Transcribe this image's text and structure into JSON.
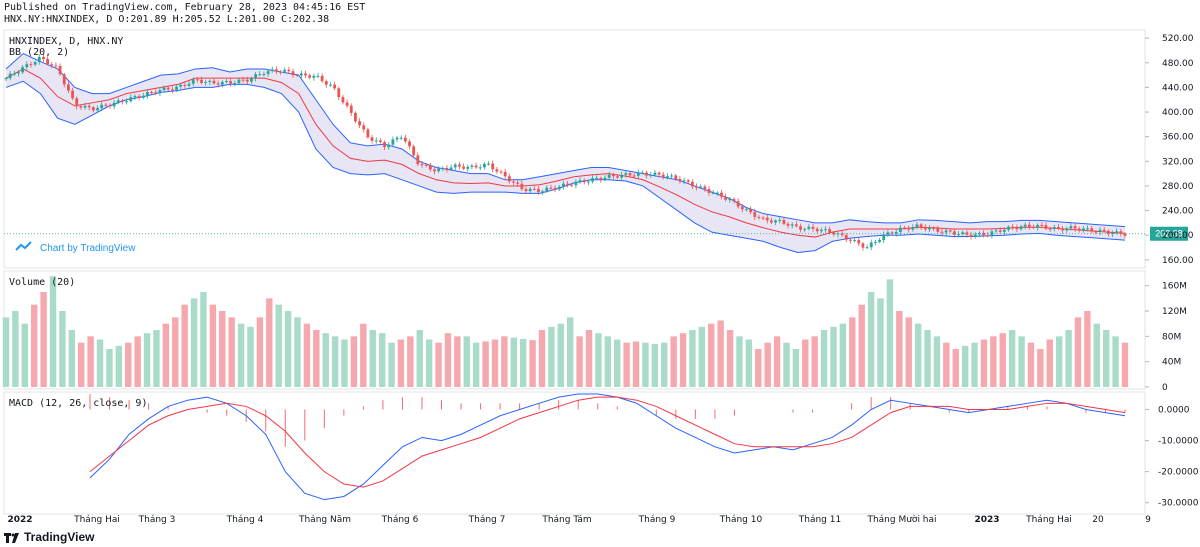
{
  "header": {
    "published": "Published on TradingView.com, February 28, 2023 04:45:16 EST",
    "symbol_line": "HNX.NY:HNXINDEX, D O:201.89 H:205.52 L:201.00 C:202.38"
  },
  "footer": {
    "brand": "TradingView"
  },
  "watermark": "Chart by TradingView",
  "colors": {
    "up": "#26a69a",
    "down": "#ef5350",
    "bb_band": "#2962ff",
    "bb_basis": "#f23645",
    "bb_fill": "#e8e6f4",
    "macd": "#2962ff",
    "signal": "#f23645",
    "vol_up": "#a9dbc9",
    "vol_down": "#f5a9ae",
    "last": "#26a69a"
  },
  "chart_data": [
    {
      "type": "candlestick",
      "title": "HNXINDEX, D, HNX.NY",
      "indicator": "BB (20, 2)",
      "last_price": "202.38",
      "y_ticks": [
        "520.00",
        "480.00",
        "440.00",
        "400.00",
        "360.00",
        "320.00",
        "280.00",
        "240.00",
        "200.00",
        "160.00"
      ],
      "ylim": [
        150,
        530
      ],
      "x_ticks": [
        "2022",
        "Tháng Hai",
        "Tháng 3",
        "Tháng 4",
        "Tháng Năm",
        "Tháng 6",
        "Tháng 7",
        "Tháng Tám",
        "Tháng 9",
        "Tháng 10",
        "Tháng 11",
        "Tháng Mười hai",
        "2023",
        "Tháng Hai",
        "20",
        "9"
      ],
      "close_path": [
        455,
        472,
        488,
        470,
        412,
        405,
        412,
        420,
        428,
        436,
        440,
        452,
        447,
        448,
        452,
        465,
        468,
        460,
        458,
        440,
        400,
        360,
        345,
        362,
        315,
        305,
        312,
        310,
        315,
        295,
        275,
        272,
        278,
        285,
        290,
        295,
        298,
        300,
        298,
        292,
        280,
        270,
        258,
        240,
        225,
        222,
        212,
        210,
        205,
        193,
        180,
        200,
        210,
        215,
        208,
        204,
        200,
        202,
        210,
        214,
        215,
        210,
        212,
        208,
        205,
        202
      ],
      "bb_upper": [
        470,
        495,
        482,
        470,
        440,
        430,
        430,
        440,
        450,
        460,
        462,
        470,
        472,
        465,
        470,
        470,
        465,
        460,
        420,
        380,
        350,
        345,
        348,
        340,
        320,
        310,
        305,
        300,
        300,
        290,
        290,
        295,
        300,
        305,
        310,
        310,
        305,
        300,
        295,
        290,
        280,
        270,
        260,
        245,
        235,
        230,
        225,
        220,
        220,
        225,
        222,
        220,
        220,
        225,
        224,
        222,
        220,
        222,
        222,
        224,
        224,
        222,
        220,
        218,
        216,
        214
      ],
      "bb_lower": [
        440,
        450,
        430,
        390,
        380,
        395,
        410,
        420,
        425,
        432,
        435,
        440,
        440,
        445,
        445,
        440,
        430,
        400,
        340,
        310,
        300,
        298,
        300,
        290,
        280,
        270,
        268,
        270,
        270,
        270,
        268,
        268,
        275,
        285,
        290,
        290,
        288,
        280,
        260,
        240,
        220,
        205,
        200,
        195,
        190,
        180,
        172,
        175,
        190,
        195,
        198,
        200,
        200,
        202,
        200,
        198,
        198,
        199,
        200,
        202,
        203,
        200,
        198,
        196,
        194,
        192
      ],
      "bb_basis": [
        455,
        470,
        455,
        425,
        410,
        415,
        420,
        430,
        435,
        440,
        445,
        455,
        455,
        455,
        455,
        455,
        448,
        430,
        380,
        345,
        325,
        320,
        322,
        315,
        300,
        290,
        285,
        284,
        285,
        280,
        280,
        282,
        288,
        295,
        298,
        300,
        296,
        290,
        278,
        265,
        250,
        238,
        230,
        220,
        212,
        205,
        200,
        197,
        205,
        210,
        210,
        210,
        210,
        213,
        212,
        210,
        210,
        210,
        211,
        213,
        213,
        211,
        209,
        207,
        205,
        203
      ]
    },
    {
      "type": "bar",
      "title": "Volume (20)",
      "y_ticks": [
        "160M",
        "120M",
        "80M",
        "40M",
        "0"
      ],
      "ylim": [
        0,
        180
      ],
      "values": [
        110,
        120,
        100,
        130,
        150,
        175,
        120,
        90,
        70,
        80,
        75,
        60,
        65,
        70,
        80,
        85,
        90,
        100,
        110,
        130,
        140,
        150,
        130,
        120,
        110,
        100,
        95,
        110,
        140,
        130,
        120,
        110,
        100,
        90,
        85,
        80,
        75,
        80,
        100,
        90,
        85,
        70,
        75,
        80,
        90,
        75,
        70,
        85,
        80,
        80,
        70,
        72,
        75,
        80,
        78,
        76,
        74,
        90,
        95,
        100,
        110,
        80,
        90,
        85,
        80,
        75,
        70,
        72,
        70,
        68,
        70,
        80,
        85,
        90,
        95,
        100,
        105,
        90,
        80,
        75,
        60,
        70,
        80,
        70,
        60,
        75,
        80,
        90,
        95,
        100,
        110,
        130,
        150,
        140,
        170,
        120,
        110,
        100,
        90,
        80,
        70,
        60,
        65,
        70,
        75,
        80,
        85,
        90,
        80,
        70,
        60,
        75,
        80,
        90,
        110,
        120,
        100,
        90,
        80,
        70
      ]
    },
    {
      "type": "line",
      "title": "MACD (12, 26, close, 9)",
      "y_ticks": [
        "0.0000",
        "-10.0000",
        "-20.0000",
        "-30.0000"
      ],
      "ylim": [
        -33,
        5
      ],
      "macd": [
        -22,
        -16,
        -8,
        -3,
        1,
        3,
        4,
        2,
        -2,
        -8,
        -20,
        -27,
        -29,
        -28,
        -24,
        -18,
        -12,
        -9,
        -10,
        -8,
        -5,
        -2,
        0,
        2,
        4,
        5,
        5,
        4,
        2,
        -2,
        -6,
        -9,
        -12,
        -14,
        -13,
        -12,
        -13,
        -11,
        -9,
        -5,
        0,
        3,
        2,
        1,
        0,
        -1,
        0,
        1,
        2,
        3,
        2,
        0,
        -1,
        -2
      ],
      "signal": [
        -20,
        -15,
        -10,
        -5,
        -2,
        0,
        1,
        2,
        1,
        -2,
        -7,
        -14,
        -20,
        -24,
        -25,
        -23,
        -19,
        -15,
        -13,
        -11,
        -9,
        -6,
        -3,
        -1,
        1,
        3,
        4,
        4,
        3,
        1,
        -2,
        -5,
        -8,
        -11,
        -12,
        -12,
        -12,
        -12,
        -11,
        -9,
        -5,
        -1,
        1,
        1,
        1,
        0,
        0,
        0,
        1,
        2,
        2,
        1,
        0,
        -1
      ],
      "histogram": [
        5,
        4,
        3,
        2,
        1,
        0,
        -1,
        -2,
        -4,
        -7,
        -12,
        -10,
        -6,
        -2,
        1,
        3,
        4,
        4,
        3,
        2,
        2,
        2,
        2,
        2,
        3,
        3,
        2,
        1,
        0,
        -2,
        -3,
        -3,
        -3,
        -2,
        0,
        0,
        -1,
        -1,
        0,
        2,
        4,
        4,
        2,
        0,
        -1,
        -1,
        0,
        1,
        1,
        1,
        0,
        -1,
        -1,
        -1
      ]
    }
  ]
}
